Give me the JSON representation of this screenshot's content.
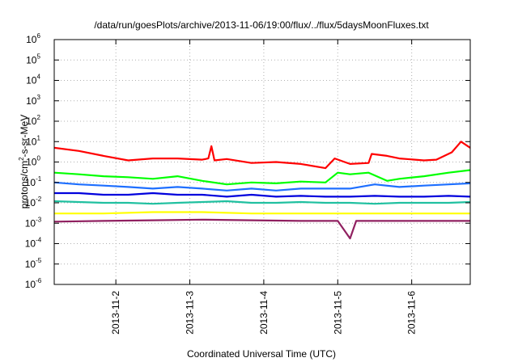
{
  "chart_data": {
    "type": "line",
    "title": "/data/run/goesPlots/archive/2013-11-06/19:00/flux/../flux/5daysMoonFluxes.txt",
    "xlabel": "Coordinated Universal Time (UTC)",
    "ylabel": {
      "base": "protons/cm",
      "sup": "2",
      "rest": "-s-sr-MeV"
    },
    "y_scale": "log",
    "ylim": [
      1e-06,
      1000000.0
    ],
    "y_ticks": [
      {
        "value": 1e-06,
        "base": "10",
        "exp": "-6"
      },
      {
        "value": 1e-05,
        "base": "10",
        "exp": "-5"
      },
      {
        "value": 0.0001,
        "base": "10",
        "exp": "-4"
      },
      {
        "value": 0.001,
        "base": "10",
        "exp": "-3"
      },
      {
        "value": 0.01,
        "base": "10",
        "exp": "-2"
      },
      {
        "value": 0.1,
        "base": "10",
        "exp": "-1"
      },
      {
        "value": 1.0,
        "base": "10",
        "exp": "0"
      },
      {
        "value": 10.0,
        "base": "10",
        "exp": "1"
      },
      {
        "value": 100.0,
        "base": "10",
        "exp": "2"
      },
      {
        "value": 1000.0,
        "base": "10",
        "exp": "3"
      },
      {
        "value": 10000.0,
        "base": "10",
        "exp": "4"
      },
      {
        "value": 100000.0,
        "base": "10",
        "exp": "5"
      },
      {
        "value": 1000000.0,
        "base": "10",
        "exp": "6"
      }
    ],
    "xlim": [
      "2013-11-01 04:00",
      "2013-11-06 19:00"
    ],
    "x_ticks": [
      "2013-11-2",
      "2013-11-3",
      "2013-11-4",
      "2013-11-5",
      "2013-11-6"
    ],
    "grid": true,
    "series": [
      {
        "color": "#ff0000",
        "x": [
          "2013-11-01 04:00",
          "2013-11-01 12:00",
          "2013-11-01 20:00",
          "2013-11-02 04:00",
          "2013-11-02 12:00",
          "2013-11-02 20:00",
          "2013-11-03 04:00",
          "2013-11-03 06:00",
          "2013-11-03 07:00",
          "2013-11-03 08:00",
          "2013-11-03 12:00",
          "2013-11-03 20:00",
          "2013-11-04 04:00",
          "2013-11-04 12:00",
          "2013-11-04 20:00",
          "2013-11-04 23:00",
          "2013-11-05 04:00",
          "2013-11-05 10:00",
          "2013-11-05 11:00",
          "2013-11-05 16:00",
          "2013-11-05 20:00",
          "2013-11-06 04:00",
          "2013-11-06 08:00",
          "2013-11-06 13:00",
          "2013-11-06 16:00",
          "2013-11-06 19:00"
        ],
        "values": [
          5,
          3.5,
          2,
          1.2,
          1.5,
          1.5,
          1.3,
          1.5,
          6,
          1.2,
          1.4,
          0.9,
          1,
          0.8,
          0.5,
          1.5,
          0.8,
          0.9,
          2.5,
          2,
          1.5,
          1.2,
          1.3,
          3,
          10,
          5
        ]
      },
      {
        "color": "#00ff00",
        "x": [
          "2013-11-01 04:00",
          "2013-11-01 12:00",
          "2013-11-01 20:00",
          "2013-11-02 04:00",
          "2013-11-02 12:00",
          "2013-11-02 20:00",
          "2013-11-03 04:00",
          "2013-11-03 12:00",
          "2013-11-03 20:00",
          "2013-11-04 04:00",
          "2013-11-04 12:00",
          "2013-11-04 20:00",
          "2013-11-05 00:00",
          "2013-11-05 04:00",
          "2013-11-05 10:00",
          "2013-11-05 16:00",
          "2013-11-05 20:00",
          "2013-11-06 04:00",
          "2013-11-06 12:00",
          "2013-11-06 19:00"
        ],
        "values": [
          0.3,
          0.25,
          0.2,
          0.18,
          0.15,
          0.2,
          0.12,
          0.08,
          0.1,
          0.09,
          0.11,
          0.1,
          0.3,
          0.25,
          0.3,
          0.12,
          0.15,
          0.2,
          0.3,
          0.4
        ]
      },
      {
        "color": "#1e6fff",
        "x": [
          "2013-11-01 04:00",
          "2013-11-01 12:00",
          "2013-11-01 20:00",
          "2013-11-02 04:00",
          "2013-11-02 12:00",
          "2013-11-02 20:00",
          "2013-11-03 04:00",
          "2013-11-03 12:00",
          "2013-11-03 20:00",
          "2013-11-04 04:00",
          "2013-11-04 12:00",
          "2013-11-04 20:00",
          "2013-11-05 04:00",
          "2013-11-05 12:00",
          "2013-11-05 20:00",
          "2013-11-06 04:00",
          "2013-11-06 12:00",
          "2013-11-06 19:00"
        ],
        "values": [
          0.1,
          0.08,
          0.07,
          0.06,
          0.05,
          0.06,
          0.05,
          0.04,
          0.05,
          0.04,
          0.05,
          0.05,
          0.05,
          0.08,
          0.06,
          0.07,
          0.08,
          0.09
        ]
      },
      {
        "color": "#0000dd",
        "x": [
          "2013-11-01 04:00",
          "2013-11-01 12:00",
          "2013-11-01 20:00",
          "2013-11-02 04:00",
          "2013-11-02 12:00",
          "2013-11-02 20:00",
          "2013-11-03 04:00",
          "2013-11-03 12:00",
          "2013-11-03 20:00",
          "2013-11-04 04:00",
          "2013-11-04 12:00",
          "2013-11-04 20:00",
          "2013-11-05 04:00",
          "2013-11-05 12:00",
          "2013-11-05 20:00",
          "2013-11-06 04:00",
          "2013-11-06 12:00",
          "2013-11-06 19:00"
        ],
        "values": [
          0.03,
          0.03,
          0.025,
          0.025,
          0.03,
          0.025,
          0.025,
          0.02,
          0.025,
          0.02,
          0.022,
          0.02,
          0.02,
          0.022,
          0.02,
          0.02,
          0.022,
          0.02
        ]
      },
      {
        "color": "#20c0a0",
        "x": [
          "2013-11-01 04:00",
          "2013-11-01 12:00",
          "2013-11-01 20:00",
          "2013-11-02 04:00",
          "2013-11-02 12:00",
          "2013-11-02 20:00",
          "2013-11-03 04:00",
          "2013-11-03 12:00",
          "2013-11-03 20:00",
          "2013-11-04 04:00",
          "2013-11-04 12:00",
          "2013-11-04 20:00",
          "2013-11-05 04:00",
          "2013-11-05 12:00",
          "2013-11-05 20:00",
          "2013-11-06 04:00",
          "2013-11-06 12:00",
          "2013-11-06 19:00"
        ],
        "values": [
          0.012,
          0.011,
          0.01,
          0.01,
          0.009,
          0.01,
          0.011,
          0.012,
          0.01,
          0.01,
          0.011,
          0.01,
          0.01,
          0.009,
          0.01,
          0.01,
          0.01,
          0.011
        ]
      },
      {
        "color": "#ffff00",
        "x": [
          "2013-11-01 04:00",
          "2013-11-01 20:00",
          "2013-11-02 12:00",
          "2013-11-03 04:00",
          "2013-11-03 20:00",
          "2013-11-04 12:00",
          "2013-11-05 04:00",
          "2013-11-05 20:00",
          "2013-11-06 12:00",
          "2013-11-06 19:00"
        ],
        "values": [
          0.003,
          0.003,
          0.0035,
          0.0035,
          0.003,
          0.003,
          0.003,
          0.003,
          0.003,
          0.003
        ]
      },
      {
        "color": "#902060",
        "x": [
          "2013-11-01 04:00",
          "2013-11-01 20:00",
          "2013-11-02 12:00",
          "2013-11-03 04:00",
          "2013-11-03 20:00",
          "2013-11-04 12:00",
          "2013-11-05 00:00",
          "2013-11-05 04:00",
          "2013-11-05 06:00",
          "2013-11-05 20:00",
          "2013-11-06 12:00",
          "2013-11-06 19:00"
        ],
        "values": [
          0.0012,
          0.0013,
          0.0014,
          0.0015,
          0.0014,
          0.0013,
          0.0013,
          0.00018,
          0.0013,
          0.0013,
          0.0013,
          0.0013
        ]
      }
    ]
  }
}
